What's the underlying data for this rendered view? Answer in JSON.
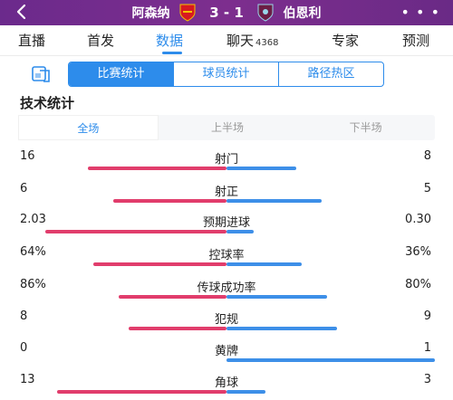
{
  "header": {
    "home_team": "阿森纳",
    "score": "3 - 1",
    "away_team": "伯恩利",
    "home_crest_icon": "arsenal-crest-icon",
    "away_crest_icon": "burnley-crest-icon",
    "more_label": "• • •"
  },
  "tabs": [
    {
      "label": "直播"
    },
    {
      "label": "首发"
    },
    {
      "label": "数据",
      "active": true
    },
    {
      "label": "聊天",
      "count": "4368"
    },
    {
      "label": "专家"
    },
    {
      "label": "预测"
    }
  ],
  "subtabs": [
    "比赛统计",
    "球员统计",
    "路径热区"
  ],
  "section_title": "技术统计",
  "periods": [
    "全场",
    "上半场",
    "下半场"
  ],
  "colors": {
    "home": "#e13d6c",
    "away": "#3d8fe8",
    "accent": "#2d8ceb",
    "header": "#7a2d8c"
  },
  "stats": [
    {
      "name": "射门",
      "home": "16",
      "away": "8",
      "home_share": 0.667,
      "away_share": 0.333
    },
    {
      "name": "射正",
      "home": "6",
      "away": "5",
      "home_share": 0.545,
      "away_share": 0.455
    },
    {
      "name": "预期进球",
      "home": "2.03",
      "away": "0.30",
      "home_share": 0.871,
      "away_share": 0.129
    },
    {
      "name": "控球率",
      "home": "64%",
      "away": "36%",
      "home_share": 0.64,
      "away_share": 0.36
    },
    {
      "name": "传球成功率",
      "home": "86%",
      "away": "80%",
      "home_share": 0.518,
      "away_share": 0.482
    },
    {
      "name": "犯规",
      "home": "8",
      "away": "9",
      "home_share": 0.471,
      "away_share": 0.529
    },
    {
      "name": "黄牌",
      "home": "0",
      "away": "1",
      "home_share": 0.0,
      "away_share": 1.0
    },
    {
      "name": "角球",
      "home": "13",
      "away": "3",
      "home_share": 0.8125,
      "away_share": 0.1875
    }
  ]
}
